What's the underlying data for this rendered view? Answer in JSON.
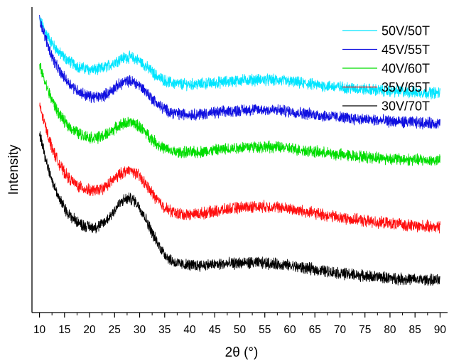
{
  "chart_data": {
    "type": "line",
    "xlabel": "2θ (°)",
    "ylabel": "Intensity",
    "xlim": [
      8.5,
      91.5
    ],
    "x_ticks": [
      10,
      15,
      20,
      25,
      30,
      35,
      40,
      45,
      50,
      55,
      60,
      65,
      70,
      75,
      80,
      85,
      90
    ],
    "y_ticks_labeled": false,
    "grid": false,
    "legend_position": "top-right",
    "series": [
      {
        "name": "50V/50T",
        "color": "#00e5ff",
        "x": [
          10,
          11,
          12,
          13,
          14,
          15,
          16,
          17,
          18,
          19,
          20,
          21,
          22,
          23,
          24,
          25,
          26,
          27,
          28,
          29,
          30,
          31,
          32,
          33,
          34,
          35,
          36,
          37,
          38,
          40,
          42,
          45,
          48,
          50,
          52,
          55,
          58,
          60,
          63,
          66,
          70,
          75,
          80,
          85,
          90
        ],
        "y": [
          9.6,
          9.25,
          8.95,
          8.7,
          8.5,
          8.35,
          8.22,
          8.12,
          8.04,
          7.99,
          7.96,
          7.95,
          7.97,
          8.02,
          8.1,
          8.2,
          8.29,
          8.35,
          8.36,
          8.32,
          8.23,
          8.1,
          7.95,
          7.8,
          7.68,
          7.6,
          7.54,
          7.5,
          7.48,
          7.47,
          7.48,
          7.52,
          7.57,
          7.6,
          7.62,
          7.62,
          7.6,
          7.56,
          7.5,
          7.44,
          7.38,
          7.31,
          7.25,
          7.21,
          7.19
        ]
      },
      {
        "name": "45V/55T",
        "color": "#1010e0",
        "x": [
          10,
          11,
          12,
          13,
          14,
          15,
          16,
          17,
          18,
          19,
          20,
          21,
          22,
          23,
          24,
          25,
          26,
          27,
          28,
          29,
          30,
          31,
          32,
          33,
          34,
          35,
          36,
          37,
          38,
          40,
          42,
          45,
          48,
          50,
          52,
          55,
          58,
          60,
          63,
          66,
          70,
          75,
          80,
          85,
          90
        ],
        "y": [
          9.6,
          9.1,
          8.6,
          8.2,
          7.9,
          7.68,
          7.5,
          7.35,
          7.23,
          7.14,
          7.08,
          7.05,
          7.06,
          7.12,
          7.22,
          7.35,
          7.47,
          7.55,
          7.58,
          7.54,
          7.43,
          7.28,
          7.1,
          6.92,
          6.77,
          6.66,
          6.58,
          6.53,
          6.5,
          6.49,
          6.5,
          6.54,
          6.59,
          6.62,
          6.64,
          6.64,
          6.62,
          6.58,
          6.52,
          6.46,
          6.39,
          6.32,
          6.26,
          6.22,
          6.19
        ]
      },
      {
        "name": "40V/60T",
        "color": "#00dd00",
        "x": [
          10,
          11,
          12,
          13,
          14,
          15,
          16,
          17,
          18,
          19,
          20,
          21,
          22,
          23,
          24,
          25,
          26,
          27,
          28,
          29,
          30,
          31,
          32,
          33,
          34,
          35,
          36,
          37,
          38,
          40,
          42,
          45,
          48,
          50,
          52,
          55,
          58,
          60,
          63,
          66,
          70,
          75,
          80,
          85,
          90
        ],
        "y": [
          8.1,
          7.6,
          7.15,
          6.78,
          6.48,
          6.25,
          6.08,
          5.95,
          5.85,
          5.78,
          5.74,
          5.72,
          5.74,
          5.8,
          5.9,
          6.02,
          6.13,
          6.2,
          6.22,
          6.18,
          6.08,
          5.93,
          5.76,
          5.6,
          5.46,
          5.37,
          5.3,
          5.26,
          5.24,
          5.24,
          5.26,
          5.31,
          5.37,
          5.41,
          5.43,
          5.43,
          5.41,
          5.37,
          5.31,
          5.24,
          5.17,
          5.1,
          5.04,
          5.0,
          4.97
        ]
      },
      {
        "name": "35V/65T",
        "color": "#ff1010",
        "x": [
          10,
          11,
          12,
          13,
          14,
          15,
          16,
          17,
          18,
          19,
          20,
          21,
          22,
          23,
          24,
          25,
          26,
          27,
          28,
          29,
          30,
          31,
          32,
          33,
          34,
          35,
          36,
          37,
          38,
          40,
          42,
          45,
          48,
          50,
          52,
          55,
          58,
          60,
          63,
          66,
          70,
          75,
          80,
          85,
          90
        ],
        "y": [
          6.8,
          6.2,
          5.65,
          5.2,
          4.85,
          4.58,
          4.38,
          4.23,
          4.12,
          4.05,
          4.0,
          3.99,
          4.02,
          4.1,
          4.23,
          4.38,
          4.52,
          4.62,
          4.65,
          4.6,
          4.45,
          4.25,
          4.02,
          3.8,
          3.6,
          3.45,
          3.34,
          3.27,
          3.23,
          3.21,
          3.24,
          3.31,
          3.39,
          3.44,
          3.47,
          3.47,
          3.44,
          3.39,
          3.31,
          3.22,
          3.11,
          3.0,
          2.91,
          2.84,
          2.8
        ]
      },
      {
        "name": "30V/70T",
        "color": "#000000",
        "x": [
          10,
          11,
          12,
          13,
          14,
          15,
          16,
          17,
          18,
          19,
          20,
          21,
          22,
          23,
          24,
          25,
          26,
          27,
          28,
          29,
          30,
          31,
          32,
          33,
          34,
          35,
          36,
          37,
          38,
          40,
          42,
          45,
          48,
          50,
          52,
          55,
          58,
          60,
          63,
          66,
          70,
          75,
          80,
          85,
          90
        ],
        "y": [
          5.9,
          5.2,
          4.6,
          4.1,
          3.72,
          3.42,
          3.2,
          3.04,
          2.92,
          2.84,
          2.8,
          2.79,
          2.84,
          2.96,
          3.14,
          3.36,
          3.56,
          3.7,
          3.74,
          3.66,
          3.45,
          3.15,
          2.8,
          2.45,
          2.15,
          1.92,
          1.75,
          1.64,
          1.58,
          1.55,
          1.55,
          1.57,
          1.6,
          1.62,
          1.63,
          1.62,
          1.58,
          1.53,
          1.46,
          1.38,
          1.29,
          1.2,
          1.13,
          1.08,
          1.05
        ]
      }
    ]
  }
}
